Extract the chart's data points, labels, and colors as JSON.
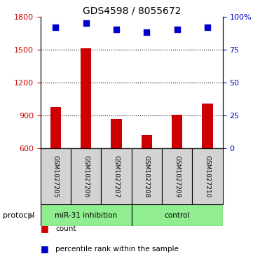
{
  "title": "GDS4598 / 8055672",
  "samples": [
    "GSM1027205",
    "GSM1027206",
    "GSM1027207",
    "GSM1027208",
    "GSM1027209",
    "GSM1027210"
  ],
  "counts": [
    980,
    1510,
    870,
    720,
    910,
    1010
  ],
  "percentile_ranks": [
    92,
    95,
    90,
    88,
    90,
    92
  ],
  "ylim_left": [
    600,
    1800
  ],
  "ylim_right": [
    0,
    100
  ],
  "yticks_left": [
    600,
    900,
    1200,
    1500,
    1800
  ],
  "yticks_right": [
    0,
    25,
    50,
    75,
    100
  ],
  "yticks_right_labels": [
    "0",
    "25",
    "50",
    "75",
    "100%"
  ],
  "grid_values": [
    900,
    1200,
    1500
  ],
  "bar_color": "#cc0000",
  "scatter_color": "#0000cc",
  "group1_label": "miR-31 inhibition",
  "group2_label": "control",
  "group1_indices": [
    0,
    1,
    2
  ],
  "group2_indices": [
    3,
    4,
    5
  ],
  "group_color": "#90ee90",
  "protocol_label": "protocol",
  "legend_count_label": "count",
  "legend_pct_label": "percentile rank within the sample",
  "sample_box_color": "#d3d3d3",
  "left_axis_color": "#cc0000",
  "right_axis_color": "#0000cc",
  "bar_width": 0.35
}
